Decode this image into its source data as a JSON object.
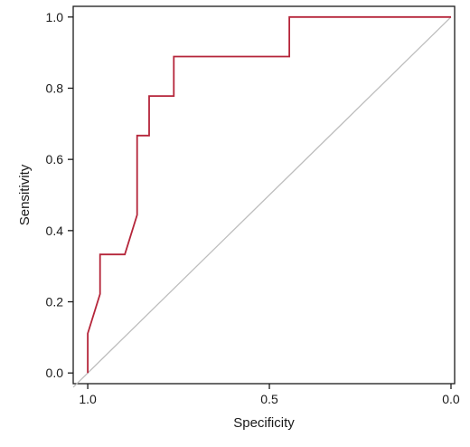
{
  "chart_data": {
    "type": "line",
    "title": "",
    "xlabel": "Specificity",
    "ylabel": "Sensitivity",
    "x_reversed": true,
    "xlim": [
      1.04,
      -0.01
    ],
    "ylim": [
      -0.03,
      1.03
    ],
    "x_ticks": [
      1.0,
      0.5,
      0.0
    ],
    "x_tick_labels": [
      "1.0",
      "0.5",
      "0.0"
    ],
    "y_ticks": [
      0.0,
      0.2,
      0.4,
      0.6,
      0.8,
      1.0
    ],
    "y_tick_labels": [
      "0.0",
      "0.2",
      "0.4",
      "0.6",
      "0.8",
      "1.0"
    ],
    "grid": false,
    "series": [
      {
        "role": "roc-curve",
        "color": "#b5253a",
        "specificity": [
          1.0,
          1.0,
          0.966,
          0.966,
          0.898,
          0.864,
          0.864,
          0.831,
          0.831,
          0.763,
          0.763,
          0.445,
          0.445,
          0.0
        ],
        "sensitivity": [
          0.0,
          0.111,
          0.222,
          0.333,
          0.333,
          0.444,
          0.667,
          0.667,
          0.778,
          0.778,
          0.889,
          0.889,
          1.0,
          1.0
        ]
      },
      {
        "role": "reference-diagonal",
        "color": "#bdbdbd",
        "specificity": [
          1.04,
          0.0
        ],
        "sensitivity": [
          -0.04,
          1.0
        ]
      }
    ]
  }
}
